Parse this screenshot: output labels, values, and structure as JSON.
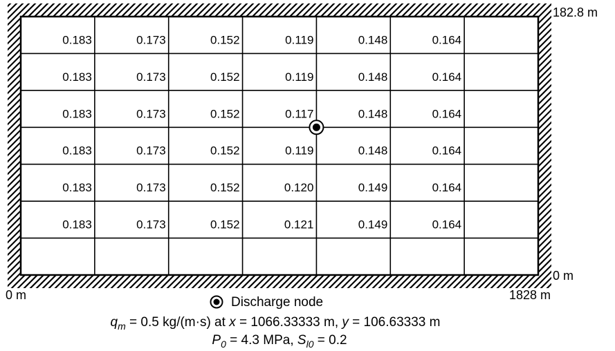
{
  "domain": {
    "x_max_label": "1828 m",
    "x_min_label": "0 m",
    "y_max_label": "182.8 m",
    "y_min_label": "0 m"
  },
  "grid": {
    "columns": 7,
    "rows": 7,
    "values": [
      [
        "0.183",
        "0.173",
        "0.152",
        "0.119",
        "0.148",
        "0.164"
      ],
      [
        "0.183",
        "0.173",
        "0.152",
        "0.119",
        "0.148",
        "0.164"
      ],
      [
        "0.183",
        "0.173",
        "0.152",
        "0.117",
        "0.148",
        "0.164"
      ],
      [
        "0.183",
        "0.173",
        "0.152",
        "0.119",
        "0.148",
        "0.164"
      ],
      [
        "0.183",
        "0.173",
        "0.152",
        "0.120",
        "0.149",
        "0.164"
      ],
      [
        "0.183",
        "0.173",
        "0.152",
        "0.121",
        "0.149",
        "0.164"
      ]
    ]
  },
  "discharge_node": {
    "legend_label": "Discharge node",
    "column_line": 4,
    "row_line": 3
  },
  "caption": {
    "line1": {
      "q": "q",
      "q_sub": "m",
      "q_rest": " = 0.5 kg/(m·s) at ",
      "x": "x",
      "x_rest": " = 1066.33333 m, ",
      "y": "y",
      "y_rest": " = 106.63333 m"
    },
    "line2": {
      "p": "P",
      "p_sub": "0",
      "p_rest": " = 4.3 MPa, ",
      "s": "S",
      "s_sub": "l0",
      "s_rest": " = 0.2"
    }
  },
  "colors": {
    "line": "#000000",
    "background": "#ffffff"
  }
}
